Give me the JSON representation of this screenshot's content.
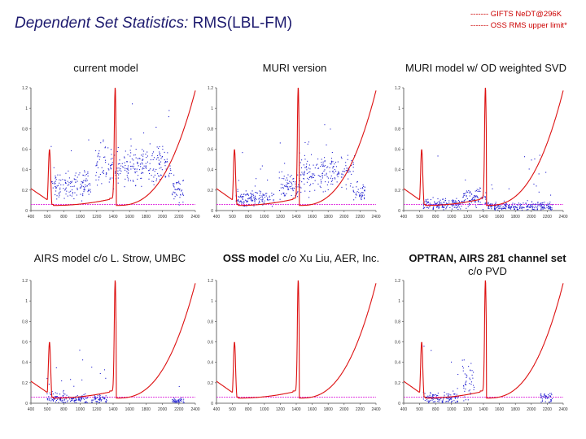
{
  "header": {
    "title_main": "Dependent Set Statistics:",
    "title_rest": " RMS(LBL-FM)"
  },
  "legend": {
    "items": [
      {
        "marker": "-------",
        "label": "GIFTS NeDT@296K",
        "color": "#cc0000"
      },
      {
        "marker": "-------",
        "label": "OSS RMS upper limit*",
        "color": "#cc0000"
      }
    ]
  },
  "colors": {
    "red_curve": "#dd1111",
    "magenta_limit": "#dd22dd",
    "blue_rms": "#1f1fcf",
    "axis": "#444444"
  },
  "chart_data": [
    {
      "type": "scatter",
      "title_strong": "current model",
      "title_rest": "",
      "xlabel": "",
      "ylabel": "",
      "xlim": [
        400,
        2440
      ],
      "ylim": [
        0,
        1.2
      ],
      "xticks": [
        "400",
        "500",
        "800",
        "1000",
        "1200",
        "1400",
        "1600",
        "1800",
        "2000",
        "2200",
        "2400"
      ],
      "yticks": [
        "0",
        "0.2",
        "0.4",
        "0.6",
        "0.8",
        "1",
        "1.2"
      ],
      "limit_y": 0.06,
      "bands": [
        [
          650,
          1150,
          0.25,
          0.1
        ],
        [
          1200,
          1400,
          0.45,
          0.15
        ],
        [
          1400,
          1700,
          0.42,
          0.15
        ],
        [
          1700,
          2150,
          0.45,
          0.12
        ],
        [
          2150,
          2300,
          0.2,
          0.08
        ]
      ],
      "series": [
        {
          "values": []
        }
      ]
    },
    {
      "type": "scatter",
      "title_strong": "MURI version",
      "title_rest": "",
      "xlabel": "",
      "ylabel": "",
      "xlim": [
        400,
        2440
      ],
      "ylim": [
        0,
        1.2
      ],
      "xticks": [
        "400",
        "500",
        "800",
        "1000",
        "1200",
        "1400",
        "1600",
        "1800",
        "2000",
        "2200",
        "2400"
      ],
      "yticks": [
        "0",
        "0.2",
        "0.4",
        "0.6",
        "0.8",
        "1",
        "1.2"
      ],
      "limit_y": 0.06,
      "bands": [
        [
          650,
          1150,
          0.12,
          0.06
        ],
        [
          1200,
          1450,
          0.22,
          0.1
        ],
        [
          1450,
          1750,
          0.35,
          0.15
        ],
        [
          1750,
          2150,
          0.38,
          0.12
        ],
        [
          2150,
          2300,
          0.18,
          0.06
        ]
      ],
      "series": [
        {
          "values": []
        }
      ]
    },
    {
      "type": "scatter",
      "title_strong": "MURI model w/ OD weighted SVD",
      "title_rest": "",
      "xlabel": "",
      "ylabel": "",
      "xlim": [
        400,
        2440
      ],
      "ylim": [
        0,
        1.2
      ],
      "xticks": [
        "400",
        "500",
        "800",
        "1000",
        "1200",
        "1400",
        "1600",
        "1800",
        "2000",
        "2200",
        "2400"
      ],
      "yticks": [
        "0",
        "0.2",
        "0.4",
        "0.6",
        "0.8",
        "1",
        "1.2"
      ],
      "limit_y": 0.06,
      "bands": [
        [
          650,
          1150,
          0.06,
          0.04
        ],
        [
          1150,
          1450,
          0.12,
          0.07
        ],
        [
          1450,
          1750,
          0.04,
          0.03
        ],
        [
          1750,
          2300,
          0.04,
          0.03
        ]
      ],
      "series": [
        {
          "values": []
        }
      ]
    },
    {
      "type": "scatter",
      "title_strong": "AIRS model",
      "title_rest": " c/o L. Strow, UMBC",
      "xlabel": "",
      "ylabel": "",
      "xlim": [
        400,
        2440
      ],
      "ylim": [
        0,
        1.2
      ],
      "xticks": [
        "400",
        "500",
        "800",
        "1000",
        "1200",
        "1400",
        "1600",
        "1800",
        "2000",
        "2200",
        "2400"
      ],
      "yticks": [
        "0",
        "0.2",
        "0.4",
        "0.6",
        "0.8",
        "1",
        "1.2"
      ],
      "limit_y": 0.06,
      "bands": [
        [
          600,
          850,
          0.05,
          0.04
        ],
        [
          850,
          1100,
          0.04,
          0.03
        ],
        [
          1150,
          1350,
          0.04,
          0.03
        ],
        [
          2150,
          2300,
          0.02,
          0.02
        ]
      ],
      "series": [
        {
          "values": []
        }
      ]
    },
    {
      "type": "line",
      "title_strong": "OSS model",
      "title_rest": " c/o Xu Liu, AER, Inc.",
      "xlabel": "",
      "ylabel": "",
      "xlim": [
        400,
        2440
      ],
      "ylim": [
        0,
        1.2
      ],
      "xticks": [
        "400",
        "500",
        "800",
        "1000",
        "1200",
        "1400",
        "1600",
        "1800",
        "2000",
        "2200",
        "2400"
      ],
      "yticks": [
        "0",
        "0.2",
        "0.4",
        "0.6",
        "0.8",
        "1",
        "1.2"
      ],
      "limit_y": 0.06,
      "bands": [],
      "series": [
        {
          "values": []
        }
      ]
    },
    {
      "type": "scatter",
      "title_strong": "OPTRAN, AIRS 281 channel set",
      "title_rest": "\nc/o PVD",
      "xlabel": "",
      "ylabel": "",
      "xlim": [
        400,
        2440
      ],
      "ylim": [
        0,
        1.2
      ],
      "xticks": [
        "400",
        "500",
        "800",
        "1000",
        "1200",
        "1400",
        "1600",
        "1800",
        "2000",
        "2200",
        "2400"
      ],
      "yticks": [
        "0",
        "0.2",
        "0.4",
        "0.6",
        "0.8",
        "1",
        "1.2"
      ],
      "limit_y": 0.06,
      "bands": [
        [
          650,
          1100,
          0.05,
          0.04
        ],
        [
          1150,
          1300,
          0.2,
          0.15
        ],
        [
          2150,
          2300,
          0.05,
          0.04
        ]
      ],
      "series": [
        {
          "values": []
        }
      ]
    }
  ]
}
